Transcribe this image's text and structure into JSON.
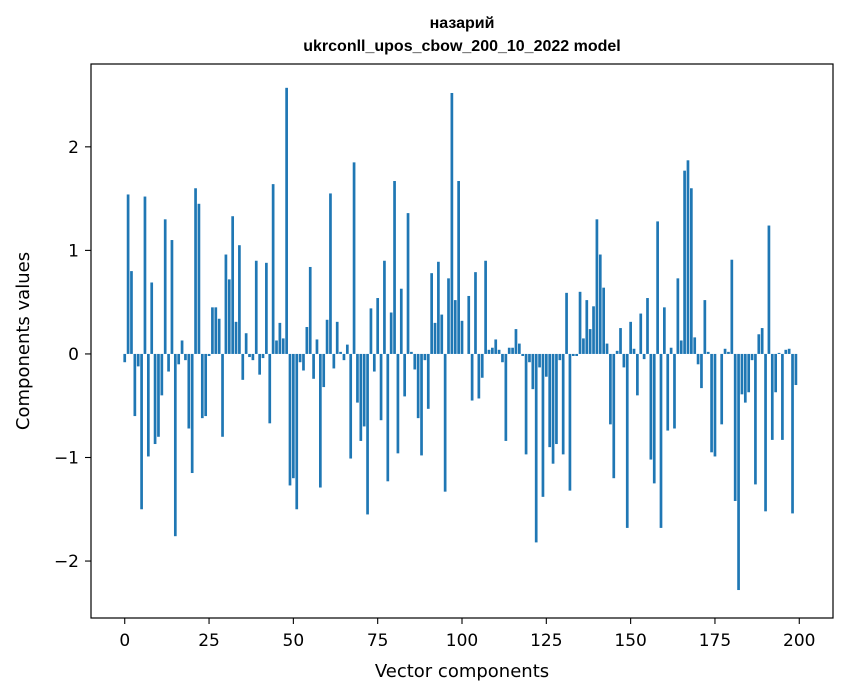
{
  "chart_data": {
    "type": "bar",
    "title_lines": [
      "назарий",
      "ukrconll_upos_cbow_200_10_2022 model"
    ],
    "xlabel": "Vector components",
    "ylabel": "Components values",
    "xlim": [
      -10,
      210
    ],
    "ylim": [
      -2.55,
      2.8
    ],
    "xticks": [
      0,
      25,
      50,
      75,
      100,
      125,
      150,
      175,
      200
    ],
    "xtick_labels": [
      "0",
      "25",
      "50",
      "75",
      "100",
      "125",
      "150",
      "175",
      "200"
    ],
    "yticks": [
      -2,
      -1,
      0,
      1,
      2
    ],
    "ytick_labels": [
      "−2",
      "−1",
      "0",
      "1",
      "2"
    ],
    "bar_color": "#1f77b4",
    "x": [
      0,
      1,
      2,
      3,
      4,
      5,
      6,
      7,
      8,
      9,
      10,
      11,
      12,
      13,
      14,
      15,
      16,
      17,
      18,
      19,
      20,
      21,
      22,
      23,
      24,
      25,
      26,
      27,
      28,
      29,
      30,
      31,
      32,
      33,
      34,
      35,
      36,
      37,
      38,
      39,
      40,
      41,
      42,
      43,
      44,
      45,
      46,
      47,
      48,
      49,
      50,
      51,
      52,
      53,
      54,
      55,
      56,
      57,
      58,
      59,
      60,
      61,
      62,
      63,
      64,
      65,
      66,
      67,
      68,
      69,
      70,
      71,
      72,
      73,
      74,
      75,
      76,
      77,
      78,
      79,
      80,
      81,
      82,
      83,
      84,
      85,
      86,
      87,
      88,
      89,
      90,
      91,
      92,
      93,
      94,
      95,
      96,
      97,
      98,
      99,
      100,
      101,
      102,
      103,
      104,
      105,
      106,
      107,
      108,
      109,
      110,
      111,
      112,
      113,
      114,
      115,
      116,
      117,
      118,
      119,
      120,
      121,
      122,
      123,
      124,
      125,
      126,
      127,
      128,
      129,
      130,
      131,
      132,
      133,
      134,
      135,
      136,
      137,
      138,
      139,
      140,
      141,
      142,
      143,
      144,
      145,
      146,
      147,
      148,
      149,
      150,
      151,
      152,
      153,
      154,
      155,
      156,
      157,
      158,
      159,
      160,
      161,
      162,
      163,
      164,
      165,
      166,
      167,
      168,
      169,
      170,
      171,
      172,
      173,
      174,
      175,
      176,
      177,
      178,
      179,
      180,
      181,
      182,
      183,
      184,
      185,
      186,
      187,
      188,
      189,
      190,
      191,
      192,
      193,
      194,
      195,
      196,
      197,
      198,
      199
    ],
    "values": [
      -0.08,
      1.54,
      0.8,
      -0.6,
      -0.12,
      -1.5,
      1.52,
      -0.99,
      0.69,
      -0.87,
      -0.8,
      -0.4,
      1.3,
      -0.17,
      1.1,
      -1.76,
      -0.1,
      0.13,
      -0.06,
      -0.72,
      -1.15,
      1.6,
      1.45,
      -0.62,
      -0.6,
      -0.02,
      0.45,
      0.45,
      0.34,
      -0.8,
      0.96,
      0.72,
      1.33,
      0.31,
      1.05,
      -0.25,
      0.2,
      -0.03,
      -0.06,
      0.9,
      -0.2,
      -0.04,
      0.88,
      -0.67,
      1.64,
      0.13,
      0.3,
      0.15,
      2.57,
      -1.27,
      -1.2,
      -1.5,
      -0.08,
      -0.16,
      0.26,
      0.84,
      -0.24,
      0.14,
      -1.29,
      -0.32,
      0.33,
      1.55,
      -0.14,
      0.31,
      0.02,
      -0.06,
      0.09,
      -1.01,
      1.85,
      -0.47,
      -0.84,
      -0.7,
      -1.55,
      0.44,
      -0.17,
      0.54,
      -0.64,
      0.9,
      -1.23,
      0.4,
      1.67,
      -0.96,
      0.63,
      -0.41,
      1.36,
      0.02,
      -0.15,
      -0.62,
      -0.98,
      -0.06,
      -0.53,
      0.78,
      0.3,
      0.89,
      0.38,
      -1.33,
      0.73,
      2.52,
      0.52,
      1.67,
      0.32,
      0.0,
      0.56,
      -0.45,
      0.79,
      -0.43,
      -0.23,
      0.9,
      0.04,
      0.06,
      0.14,
      0.04,
      -0.08,
      -0.84,
      0.06,
      0.06,
      0.24,
      0.1,
      -0.02,
      -0.97,
      -0.08,
      -0.34,
      -1.82,
      -0.13,
      -1.38,
      -0.22,
      -0.9,
      -1.06,
      -0.87,
      -0.06,
      -0.97,
      0.59,
      -1.32,
      -0.02,
      -0.02,
      0.6,
      0.15,
      0.52,
      0.24,
      0.46,
      1.3,
      0.96,
      0.64,
      0.1,
      -0.68,
      -1.2,
      0.03,
      0.25,
      -0.13,
      -1.68,
      0.31,
      0.05,
      -0.4,
      0.39,
      -0.05,
      0.54,
      -1.02,
      -1.25,
      1.28,
      -1.68,
      0.45,
      -0.74,
      0.06,
      -0.72,
      0.73,
      0.13,
      1.77,
      1.87,
      1.6,
      0.16,
      -0.1,
      -0.33,
      0.52,
      0.02,
      -0.95,
      -0.99,
      0.0,
      -0.68,
      0.05,
      0.02,
      0.91,
      -1.42,
      -2.28,
      -0.39,
      -0.47,
      -0.37,
      -0.06,
      -1.26,
      0.19,
      0.25,
      -1.52,
      1.24,
      -0.83,
      -0.37,
      0.01,
      -0.83,
      0.04,
      0.05,
      -1.54,
      -0.3
    ],
    "grid": false,
    "legend": "none"
  }
}
